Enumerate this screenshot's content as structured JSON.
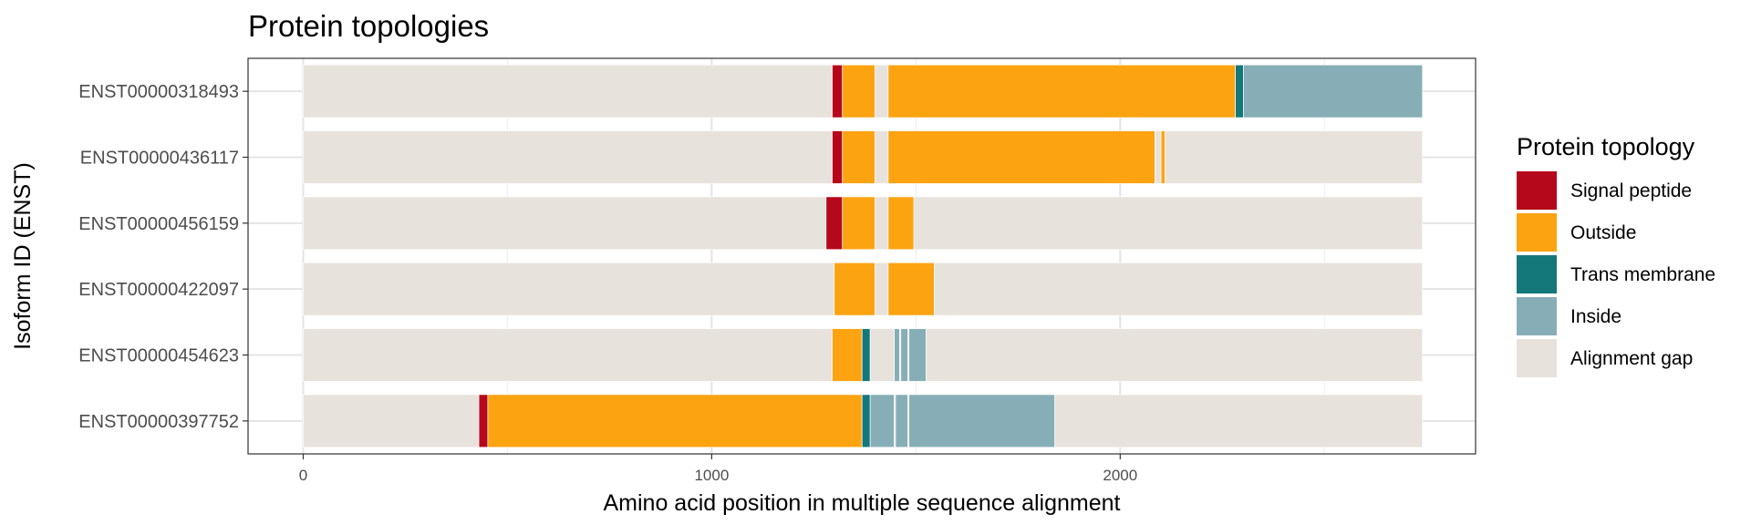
{
  "chart_data": {
    "type": "bar",
    "orientation": "horizontal",
    "stacked": true,
    "title": "Protein topologies",
    "xlabel": "Amino acid position in multiple sequence alignment",
    "ylabel": "Isoform ID (ENST)",
    "xlim": [
      -135,
      2870
    ],
    "xticks": [
      0,
      1000,
      2000
    ],
    "xtick_labels": [
      "0",
      "1000",
      "2000"
    ],
    "grid": true,
    "legend": {
      "title": "Protein topology",
      "position": "right",
      "entries": [
        {
          "name": "Signal peptide",
          "color": "#B5081B"
        },
        {
          "name": "Outside",
          "color": "#FCA311"
        },
        {
          "name": "Trans membrane",
          "color": "#14787A"
        },
        {
          "name": "Inside",
          "color": "#87AEB7"
        },
        {
          "name": "Alignment gap",
          "color": "#E8E2DC"
        }
      ]
    },
    "categories": [
      "ENST00000318493",
      "ENST00000436117",
      "ENST00000456159",
      "ENST00000422097",
      "ENST00000454623",
      "ENST00000397752"
    ],
    "series": [
      {
        "category": "ENST00000318493",
        "segments": [
          {
            "topology": "Alignment gap",
            "start": 0,
            "end": 1295
          },
          {
            "topology": "Signal peptide",
            "start": 1295,
            "end": 1320
          },
          {
            "topology": "Outside",
            "start": 1320,
            "end": 1400
          },
          {
            "topology": "Alignment gap",
            "start": 1400,
            "end": 1432
          },
          {
            "topology": "Outside",
            "start": 1432,
            "end": 2282
          },
          {
            "topology": "Trans membrane",
            "start": 2282,
            "end": 2302
          },
          {
            "topology": "Inside",
            "start": 2302,
            "end": 2740
          }
        ]
      },
      {
        "category": "ENST00000436117",
        "segments": [
          {
            "topology": "Alignment gap",
            "start": 0,
            "end": 1295
          },
          {
            "topology": "Signal peptide",
            "start": 1295,
            "end": 1320
          },
          {
            "topology": "Outside",
            "start": 1320,
            "end": 1400
          },
          {
            "topology": "Alignment gap",
            "start": 1400,
            "end": 1432
          },
          {
            "topology": "Outside",
            "start": 1432,
            "end": 2085
          },
          {
            "topology": "Alignment gap",
            "start": 2085,
            "end": 2100
          },
          {
            "topology": "Outside",
            "start": 2100,
            "end": 2110
          },
          {
            "topology": "Alignment gap",
            "start": 2110,
            "end": 2740
          }
        ]
      },
      {
        "category": "ENST00000456159",
        "segments": [
          {
            "topology": "Alignment gap",
            "start": 0,
            "end": 1280
          },
          {
            "topology": "Signal peptide",
            "start": 1280,
            "end": 1320
          },
          {
            "topology": "Outside",
            "start": 1320,
            "end": 1400
          },
          {
            "topology": "Alignment gap",
            "start": 1400,
            "end": 1432
          },
          {
            "topology": "Outside",
            "start": 1432,
            "end": 1495
          },
          {
            "topology": "Alignment gap",
            "start": 1495,
            "end": 2740
          }
        ]
      },
      {
        "category": "ENST00000422097",
        "segments": [
          {
            "topology": "Alignment gap",
            "start": 0,
            "end": 1300
          },
          {
            "topology": "Outside",
            "start": 1300,
            "end": 1400
          },
          {
            "topology": "Alignment gap",
            "start": 1400,
            "end": 1432
          },
          {
            "topology": "Outside",
            "start": 1432,
            "end": 1545
          },
          {
            "topology": "Alignment gap",
            "start": 1545,
            "end": 2740
          }
        ]
      },
      {
        "category": "ENST00000454623",
        "segments": [
          {
            "topology": "Alignment gap",
            "start": 0,
            "end": 1295
          },
          {
            "topology": "Outside",
            "start": 1295,
            "end": 1368
          },
          {
            "topology": "Trans membrane",
            "start": 1368,
            "end": 1388
          },
          {
            "topology": "Alignment gap",
            "start": 1388,
            "end": 1447
          },
          {
            "topology": "Inside",
            "start": 1447,
            "end": 1460
          },
          {
            "topology": "Alignment gap",
            "start": 1460,
            "end": 1463
          },
          {
            "topology": "Inside",
            "start": 1463,
            "end": 1480
          },
          {
            "topology": "Alignment gap",
            "start": 1480,
            "end": 1483
          },
          {
            "topology": "Inside",
            "start": 1483,
            "end": 1525
          },
          {
            "topology": "Alignment gap",
            "start": 1525,
            "end": 2740
          }
        ]
      },
      {
        "category": "ENST00000397752",
        "segments": [
          {
            "topology": "Alignment gap",
            "start": 0,
            "end": 430
          },
          {
            "topology": "Signal peptide",
            "start": 430,
            "end": 452
          },
          {
            "topology": "Outside",
            "start": 452,
            "end": 1368
          },
          {
            "topology": "Trans membrane",
            "start": 1368,
            "end": 1388
          },
          {
            "topology": "Inside",
            "start": 1388,
            "end": 1447
          },
          {
            "topology": "Alignment gap",
            "start": 1447,
            "end": 1450
          },
          {
            "topology": "Inside",
            "start": 1450,
            "end": 1480
          },
          {
            "topology": "Alignment gap",
            "start": 1480,
            "end": 1483
          },
          {
            "topology": "Inside",
            "start": 1483,
            "end": 1840
          },
          {
            "topology": "Alignment gap",
            "start": 1840,
            "end": 2740
          }
        ]
      }
    ]
  }
}
